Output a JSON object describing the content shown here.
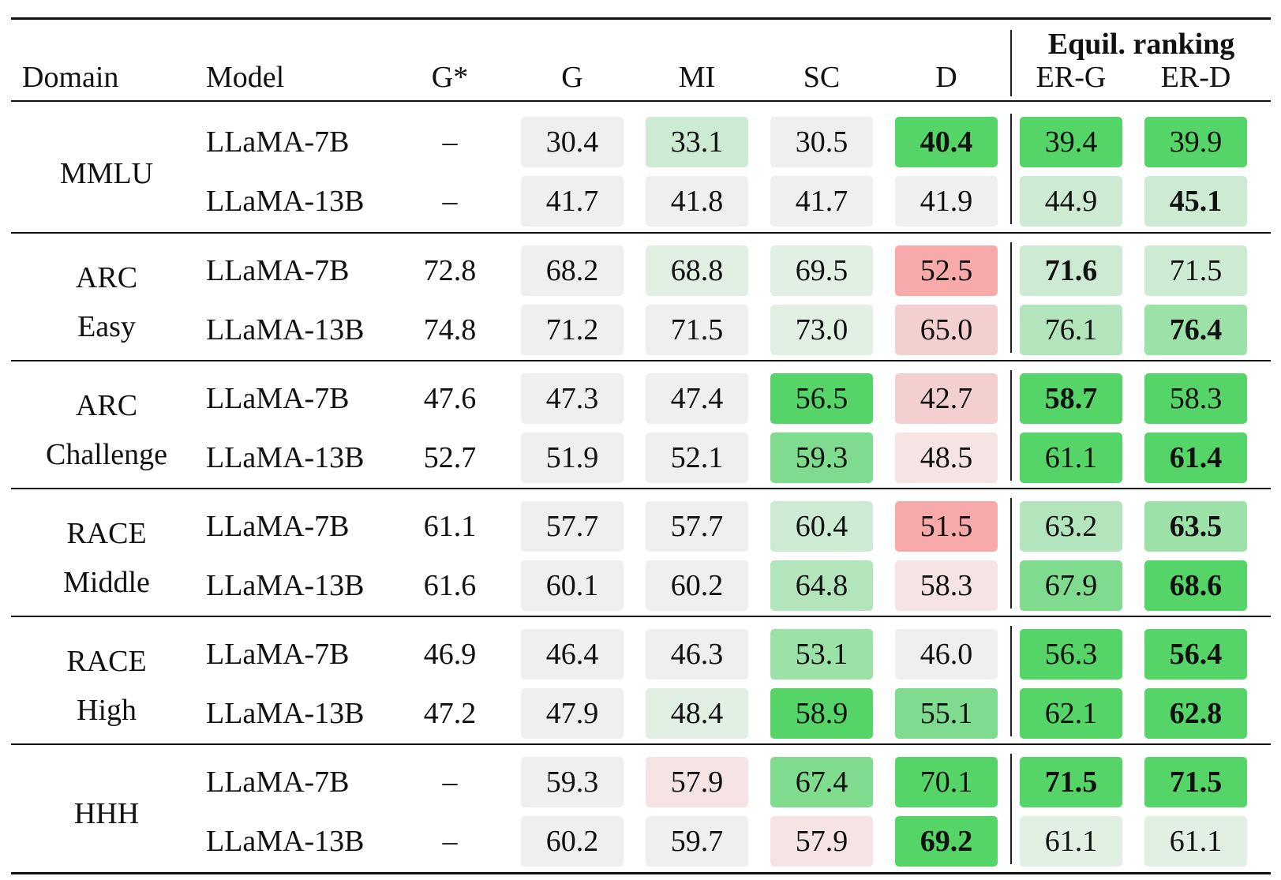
{
  "headers": {
    "domain": "Domain",
    "model": "Model",
    "g_star": "G*",
    "g": "G",
    "mi": "MI",
    "sc": "SC",
    "d": "D",
    "group": "Equil. ranking",
    "er_g": "ER-G",
    "er_d": "ER-D"
  },
  "colors": {
    "neutral": "#efefef",
    "green_1": "#e2f0e4",
    "green_2": "#cdebd3",
    "green_3": "#b3e5bd",
    "green_4": "#9ce1a8",
    "green_5": "#7fdb8d",
    "green_6": "#55d467",
    "pink_1": "#f6e3e3",
    "pink_2": "#f4cfcf",
    "red_1": "#f8a9a9"
  },
  "domains": [
    {
      "name": "MMLU",
      "lines": [
        "MMLU"
      ],
      "rows": [
        {
          "model": "LLaMA-7B",
          "g_star": "–",
          "values": [
            {
              "v": "30.4",
              "c": "neutral",
              "b": false
            },
            {
              "v": "33.1",
              "c": "green_2",
              "b": false
            },
            {
              "v": "30.5",
              "c": "neutral",
              "b": false
            },
            {
              "v": "40.4",
              "c": "green_6",
              "b": true
            },
            {
              "v": "39.4",
              "c": "green_6",
              "b": false
            },
            {
              "v": "39.9",
              "c": "green_6",
              "b": false
            }
          ]
        },
        {
          "model": "LLaMA-13B",
          "g_star": "–",
          "values": [
            {
              "v": "41.7",
              "c": "neutral",
              "b": false
            },
            {
              "v": "41.8",
              "c": "neutral",
              "b": false
            },
            {
              "v": "41.7",
              "c": "neutral",
              "b": false
            },
            {
              "v": "41.9",
              "c": "neutral",
              "b": false
            },
            {
              "v": "44.9",
              "c": "green_2",
              "b": false
            },
            {
              "v": "45.1",
              "c": "green_2",
              "b": true
            }
          ]
        }
      ]
    },
    {
      "name": "ARC Easy",
      "lines": [
        "ARC",
        "Easy"
      ],
      "rows": [
        {
          "model": "LLaMA-7B",
          "g_star": "72.8",
          "values": [
            {
              "v": "68.2",
              "c": "neutral",
              "b": false
            },
            {
              "v": "68.8",
              "c": "green_1",
              "b": false
            },
            {
              "v": "69.5",
              "c": "green_1",
              "b": false
            },
            {
              "v": "52.5",
              "c": "red_1",
              "b": false
            },
            {
              "v": "71.6",
              "c": "green_2",
              "b": true
            },
            {
              "v": "71.5",
              "c": "green_2",
              "b": false
            }
          ]
        },
        {
          "model": "LLaMA-13B",
          "g_star": "74.8",
          "values": [
            {
              "v": "71.2",
              "c": "neutral",
              "b": false
            },
            {
              "v": "71.5",
              "c": "neutral",
              "b": false
            },
            {
              "v": "73.0",
              "c": "green_1",
              "b": false
            },
            {
              "v": "65.0",
              "c": "pink_2",
              "b": false
            },
            {
              "v": "76.1",
              "c": "green_3",
              "b": false
            },
            {
              "v": "76.4",
              "c": "green_4",
              "b": true
            }
          ]
        }
      ]
    },
    {
      "name": "ARC Challenge",
      "lines": [
        "ARC",
        "Challenge"
      ],
      "rows": [
        {
          "model": "LLaMA-7B",
          "g_star": "47.6",
          "values": [
            {
              "v": "47.3",
              "c": "neutral",
              "b": false
            },
            {
              "v": "47.4",
              "c": "neutral",
              "b": false
            },
            {
              "v": "56.5",
              "c": "green_6",
              "b": false
            },
            {
              "v": "42.7",
              "c": "pink_2",
              "b": false
            },
            {
              "v": "58.7",
              "c": "green_6",
              "b": true
            },
            {
              "v": "58.3",
              "c": "green_6",
              "b": false
            }
          ]
        },
        {
          "model": "LLaMA-13B",
          "g_star": "52.7",
          "values": [
            {
              "v": "51.9",
              "c": "neutral",
              "b": false
            },
            {
              "v": "52.1",
              "c": "neutral",
              "b": false
            },
            {
              "v": "59.3",
              "c": "green_5",
              "b": false
            },
            {
              "v": "48.5",
              "c": "pink_1",
              "b": false
            },
            {
              "v": "61.1",
              "c": "green_6",
              "b": false
            },
            {
              "v": "61.4",
              "c": "green_6",
              "b": true
            }
          ]
        }
      ]
    },
    {
      "name": "RACE Middle",
      "lines": [
        "RACE",
        "Middle"
      ],
      "rows": [
        {
          "model": "LLaMA-7B",
          "g_star": "61.1",
          "values": [
            {
              "v": "57.7",
              "c": "neutral",
              "b": false
            },
            {
              "v": "57.7",
              "c": "neutral",
              "b": false
            },
            {
              "v": "60.4",
              "c": "green_2",
              "b": false
            },
            {
              "v": "51.5",
              "c": "red_1",
              "b": false
            },
            {
              "v": "63.2",
              "c": "green_3",
              "b": false
            },
            {
              "v": "63.5",
              "c": "green_4",
              "b": true
            }
          ]
        },
        {
          "model": "LLaMA-13B",
          "g_star": "61.6",
          "values": [
            {
              "v": "60.1",
              "c": "neutral",
              "b": false
            },
            {
              "v": "60.2",
              "c": "neutral",
              "b": false
            },
            {
              "v": "64.8",
              "c": "green_3",
              "b": false
            },
            {
              "v": "58.3",
              "c": "pink_1",
              "b": false
            },
            {
              "v": "67.9",
              "c": "green_5",
              "b": false
            },
            {
              "v": "68.6",
              "c": "green_6",
              "b": true
            }
          ]
        }
      ]
    },
    {
      "name": "RACE High",
      "lines": [
        "RACE",
        "High"
      ],
      "rows": [
        {
          "model": "LLaMA-7B",
          "g_star": "46.9",
          "values": [
            {
              "v": "46.4",
              "c": "neutral",
              "b": false
            },
            {
              "v": "46.3",
              "c": "neutral",
              "b": false
            },
            {
              "v": "53.1",
              "c": "green_4",
              "b": false
            },
            {
              "v": "46.0",
              "c": "neutral",
              "b": false
            },
            {
              "v": "56.3",
              "c": "green_6",
              "b": false
            },
            {
              "v": "56.4",
              "c": "green_6",
              "b": true
            }
          ]
        },
        {
          "model": "LLaMA-13B",
          "g_star": "47.2",
          "values": [
            {
              "v": "47.9",
              "c": "neutral",
              "b": false
            },
            {
              "v": "48.4",
              "c": "green_1",
              "b": false
            },
            {
              "v": "58.9",
              "c": "green_6",
              "b": false
            },
            {
              "v": "55.1",
              "c": "green_5",
              "b": false
            },
            {
              "v": "62.1",
              "c": "green_6",
              "b": false
            },
            {
              "v": "62.8",
              "c": "green_6",
              "b": true
            }
          ]
        }
      ]
    },
    {
      "name": "HHH",
      "lines": [
        "HHH"
      ],
      "rows": [
        {
          "model": "LLaMA-7B",
          "g_star": "–",
          "values": [
            {
              "v": "59.3",
              "c": "neutral",
              "b": false
            },
            {
              "v": "57.9",
              "c": "pink_1",
              "b": false
            },
            {
              "v": "67.4",
              "c": "green_5",
              "b": false
            },
            {
              "v": "70.1",
              "c": "green_6",
              "b": false
            },
            {
              "v": "71.5",
              "c": "green_6",
              "b": true
            },
            {
              "v": "71.5",
              "c": "green_6",
              "b": true
            }
          ]
        },
        {
          "model": "LLaMA-13B",
          "g_star": "–",
          "values": [
            {
              "v": "60.2",
              "c": "neutral",
              "b": false
            },
            {
              "v": "59.7",
              "c": "neutral",
              "b": false
            },
            {
              "v": "57.9",
              "c": "pink_1",
              "b": false
            },
            {
              "v": "69.2",
              "c": "green_6",
              "b": true
            },
            {
              "v": "61.1",
              "c": "green_1",
              "b": false
            },
            {
              "v": "61.1",
              "c": "green_1",
              "b": false
            }
          ]
        }
      ]
    }
  ]
}
